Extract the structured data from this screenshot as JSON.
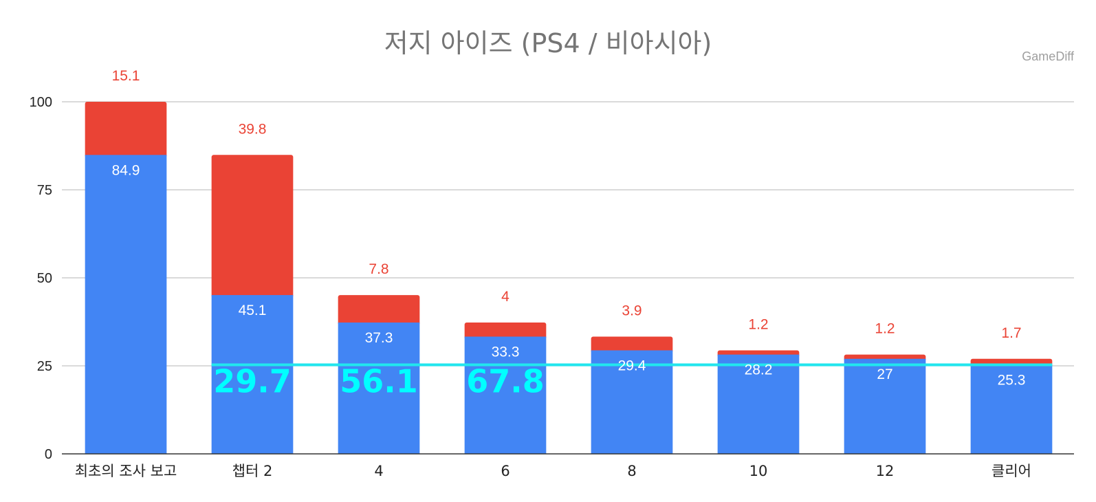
{
  "chart_data": {
    "type": "bar",
    "stacked": true,
    "title": "저지 아이즈 (PS4 / 비아시아)",
    "watermark": "GameDiff",
    "categories": [
      "최초의 조사 보고",
      "챕터 2",
      "4",
      "6",
      "8",
      "10",
      "12",
      "클리어"
    ],
    "series": [
      {
        "name": "blue",
        "color": "#4285f4",
        "values": [
          84.9,
          45.1,
          37.3,
          33.3,
          29.4,
          28.2,
          27,
          25.3
        ]
      },
      {
        "name": "red",
        "color": "#ea4335",
        "values": [
          15.1,
          39.8,
          7.8,
          4,
          3.9,
          1.2,
          1.2,
          1.7
        ]
      }
    ],
    "reference_line": {
      "value": 25.3,
      "color": "#21e6ee"
    },
    "highlight_labels": [
      {
        "category_index": 1,
        "text": "29.7"
      },
      {
        "category_index": 2,
        "text": "56.1"
      },
      {
        "category_index": 3,
        "text": "67.8"
      }
    ],
    "ylim": [
      0,
      100
    ],
    "yticks": [
      0,
      25,
      50,
      75,
      100
    ],
    "grid": true,
    "xlabel": "",
    "ylabel": ""
  }
}
